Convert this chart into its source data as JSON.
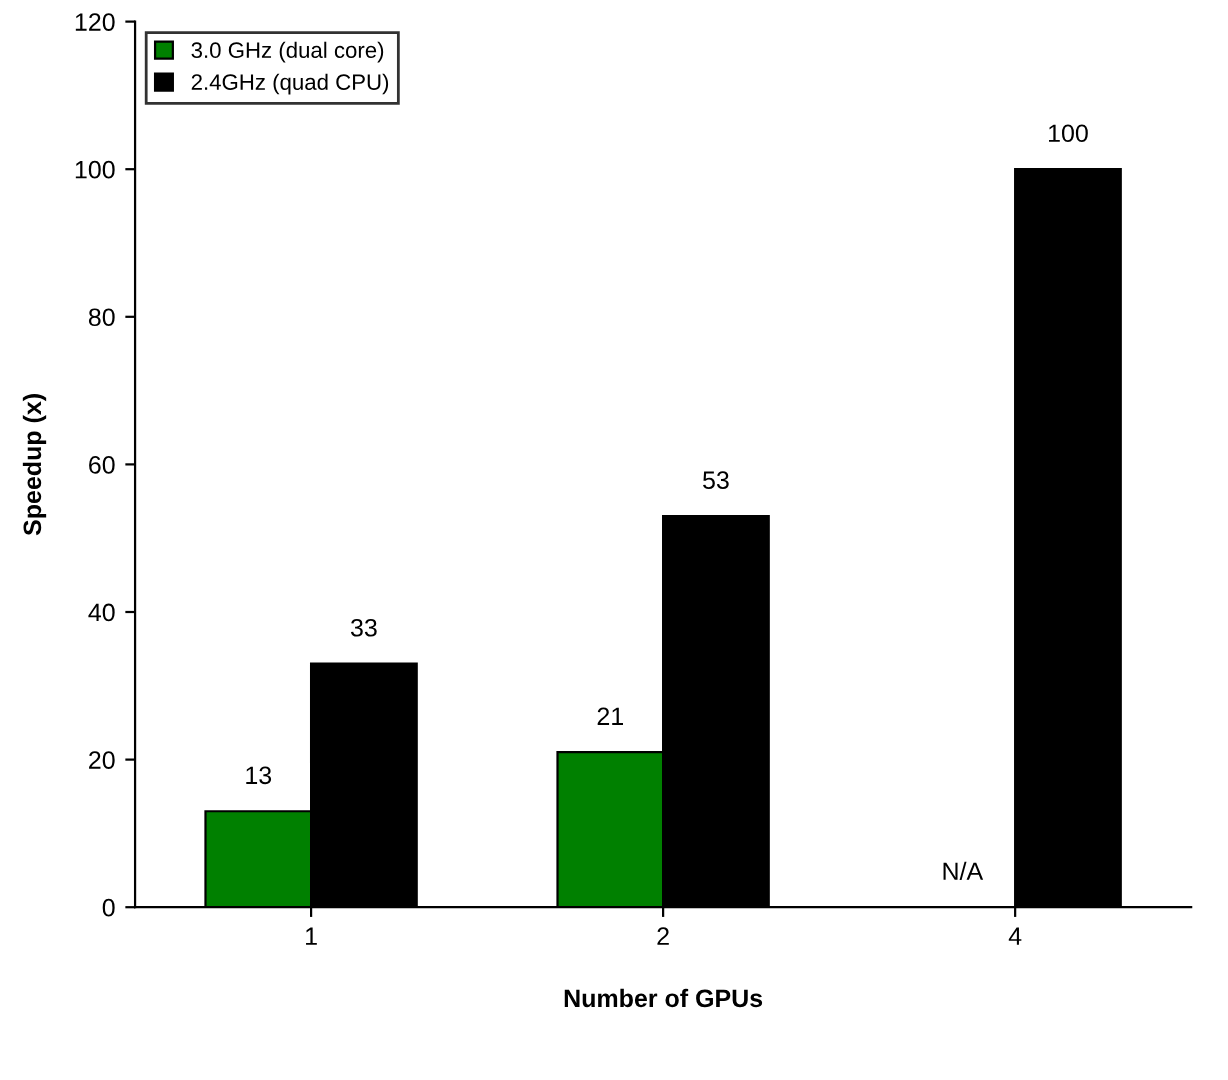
{
  "chart_data": {
    "type": "bar",
    "xlabel": "Number of GPUs",
    "ylabel": "Speedup (x)",
    "categories": [
      "1",
      "2",
      "4"
    ],
    "series": [
      {
        "name": "3.0 GHz (dual core)",
        "color": "#008000",
        "values": [
          13,
          21,
          null
        ],
        "value_labels": [
          "13",
          "21",
          "N/A"
        ]
      },
      {
        "name": "2.4GHz (quad CPU)",
        "color": "#000000",
        "values": [
          33,
          53,
          100
        ],
        "value_labels": [
          "33",
          "53",
          "100"
        ]
      }
    ],
    "ylim": [
      0,
      120
    ],
    "yticks": [
      0,
      20,
      40,
      60,
      80,
      100,
      120
    ],
    "grid": false,
    "legend": "top left"
  }
}
